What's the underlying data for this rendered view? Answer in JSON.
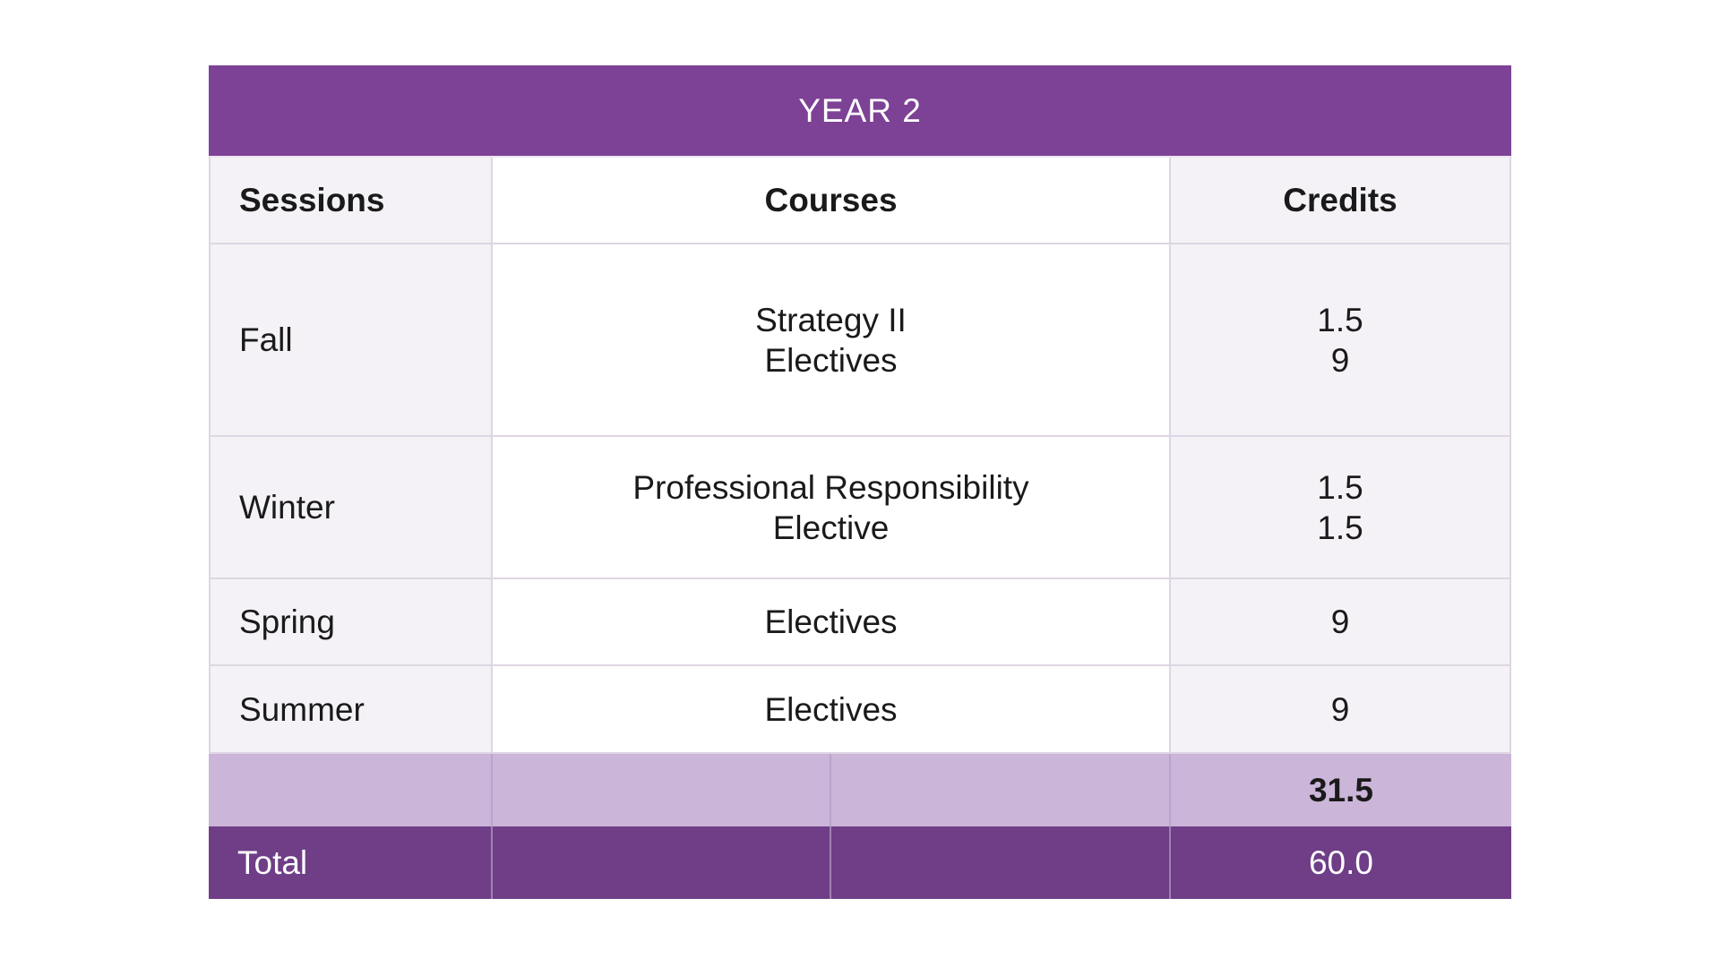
{
  "colors": {
    "banner_bg": "#7d4295",
    "total_bg": "#6f3e87",
    "subtotal_bg": "#cbb5d8",
    "column_bg": "#f4f2f6",
    "white_bg": "#ffffff",
    "border": "#ded6e3",
    "banner_under": "#ece4f2",
    "subtotal_border": "#b9a4cc",
    "total_border": "rgba(255,255,255,0.35)",
    "text": "#1a1a1a",
    "title_text": "#ffffff"
  },
  "table": {
    "title": "YEAR 2",
    "columns": [
      "Sessions",
      "Courses",
      "Credits"
    ],
    "rows": [
      {
        "session": "Fall",
        "courses": [
          "Strategy II",
          "Electives"
        ],
        "credits": [
          "1.5",
          "9"
        ]
      },
      {
        "session": "Winter",
        "courses": [
          "Professional Responsibility",
          "Elective"
        ],
        "credits": [
          "1.5",
          "1.5"
        ]
      },
      {
        "session": "Spring",
        "courses": [
          "Electives"
        ],
        "credits": [
          "9"
        ]
      },
      {
        "session": "Summer",
        "courses": [
          "Electives"
        ],
        "credits": [
          "9"
        ]
      }
    ],
    "subtotal": {
      "credits": "31.5"
    },
    "total": {
      "label": "Total",
      "credits": "60.0"
    }
  }
}
